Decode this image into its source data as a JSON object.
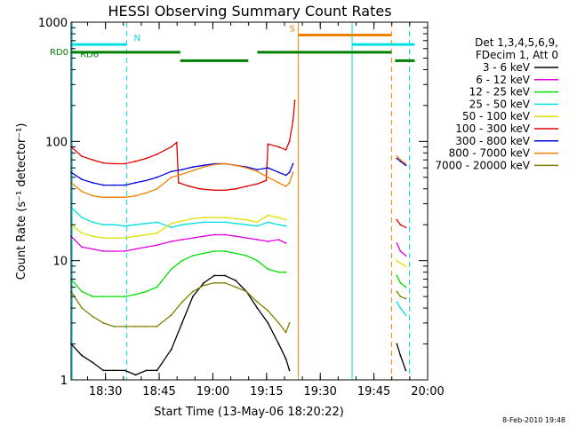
{
  "chart_data": {
    "type": "line",
    "title": "HESSI Observing Summary Count Rates",
    "xlabel": "Start Time (13-May-06 18:20:22)",
    "ylabel": "Count Rate (s⁻¹ detector⁻¹)",
    "footer": "8-Feb-2010 19:48",
    "y_scale": "log",
    "ylim": [
      1,
      1000
    ],
    "y_ticks": [
      {
        "value": 1,
        "label": "1"
      },
      {
        "value": 10,
        "label": "10"
      },
      {
        "value": 100,
        "label": "100"
      },
      {
        "value": 1000,
        "label": "1000"
      }
    ],
    "xlim_minutes": [
      0,
      99.6
    ],
    "x_ticks": [
      {
        "value": 9.6,
        "label": "18:30"
      },
      {
        "value": 24.6,
        "label": "18:45"
      },
      {
        "value": 39.6,
        "label": "19:00"
      },
      {
        "value": 54.6,
        "label": "19:15"
      },
      {
        "value": 69.6,
        "label": "19:30"
      },
      {
        "value": 84.6,
        "label": "19:45"
      },
      {
        "value": 99.6,
        "label": "20:00"
      }
    ],
    "legend": {
      "placement": "right",
      "header": [
        "Det 1,3,4,5,6,9,",
        "FDecim 1, Att 0"
      ]
    },
    "series": [
      {
        "name": "3 - 6 keV",
        "color": "#000000",
        "segments": [
          [
            [
              0,
              2
            ],
            [
              3,
              1.6
            ],
            [
              6,
              1.4
            ],
            [
              9,
              1.2
            ],
            [
              12,
              1.2
            ],
            [
              15,
              1.2
            ],
            [
              18,
              1.1
            ],
            [
              21,
              1.2
            ],
            [
              24,
              1.2
            ],
            [
              28,
              1.8
            ],
            [
              31,
              3
            ],
            [
              34,
              5
            ],
            [
              37,
              6.5
            ],
            [
              40,
              7.5
            ],
            [
              43,
              7.5
            ],
            [
              46,
              6.8
            ],
            [
              49,
              5.5
            ],
            [
              52,
              4
            ],
            [
              55,
              3
            ],
            [
              58,
              2
            ],
            [
              60,
              1.5
            ],
            [
              61,
              1.2
            ]
          ],
          [
            [
              91,
              2
            ],
            [
              92,
              1.6
            ],
            [
              93.5,
              1.2
            ]
          ]
        ]
      },
      {
        "name": "6 - 12 keV",
        "color": "#e000e0",
        "segments": [
          [
            [
              0,
              16
            ],
            [
              3,
              13
            ],
            [
              6,
              12.5
            ],
            [
              9,
              12
            ],
            [
              12,
              12
            ],
            [
              15,
              12
            ],
            [
              18,
              12.5
            ],
            [
              21,
              13
            ],
            [
              24,
              13.5
            ],
            [
              28,
              14.5
            ],
            [
              31,
              15
            ],
            [
              34,
              15.5
            ],
            [
              37,
              16
            ],
            [
              40,
              16.5
            ],
            [
              43,
              16.5
            ],
            [
              46,
              16
            ],
            [
              49,
              15.5
            ],
            [
              52,
              15
            ],
            [
              55,
              14.5
            ],
            [
              58,
              15
            ],
            [
              60,
              14
            ]
          ],
          [
            [
              91,
              14
            ],
            [
              92,
              12
            ],
            [
              93.5,
              11
            ]
          ]
        ]
      },
      {
        "name": "12 - 25 keV",
        "color": "#00e000",
        "segments": [
          [
            [
              0,
              7
            ],
            [
              3,
              5.5
            ],
            [
              6,
              5
            ],
            [
              9,
              5
            ],
            [
              12,
              5
            ],
            [
              15,
              5
            ],
            [
              18,
              5.2
            ],
            [
              21,
              5.5
            ],
            [
              24,
              6
            ],
            [
              28,
              8.5
            ],
            [
              31,
              10
            ],
            [
              34,
              11
            ],
            [
              37,
              11.5
            ],
            [
              40,
              12
            ],
            [
              43,
              12
            ],
            [
              46,
              11.5
            ],
            [
              49,
              11
            ],
            [
              52,
              10
            ],
            [
              55,
              8.5
            ],
            [
              58,
              8
            ],
            [
              60,
              8
            ]
          ],
          [
            [
              91,
              7.5
            ],
            [
              92,
              6.5
            ],
            [
              93.5,
              6
            ]
          ]
        ]
      },
      {
        "name": "25 - 50 keV",
        "color": "#00e0e0",
        "segments": [
          [
            [
              0,
              28
            ],
            [
              3,
              23
            ],
            [
              6,
              21
            ],
            [
              9,
              20
            ],
            [
              12,
              20
            ],
            [
              15,
              19.5
            ],
            [
              18,
              20
            ],
            [
              21,
              20.5
            ],
            [
              24,
              21
            ],
            [
              28,
              19
            ],
            [
              31,
              20
            ],
            [
              34,
              20.5
            ],
            [
              37,
              21
            ],
            [
              40,
              21
            ],
            [
              43,
              21
            ],
            [
              46,
              20.5
            ],
            [
              49,
              20
            ],
            [
              52,
              19.5
            ],
            [
              55,
              21
            ],
            [
              58,
              20
            ],
            [
              60,
              19.5
            ]
          ],
          [
            [
              91,
              4.5
            ],
            [
              92,
              4
            ],
            [
              93.5,
              3.5
            ]
          ]
        ]
      },
      {
        "name": "50 - 100 keV",
        "color": "#e0e000",
        "segments": [
          [
            [
              0,
              20
            ],
            [
              3,
              17
            ],
            [
              6,
              16
            ],
            [
              9,
              15.5
            ],
            [
              12,
              15.5
            ],
            [
              15,
              15.5
            ],
            [
              18,
              16
            ],
            [
              21,
              16.5
            ],
            [
              24,
              17
            ],
            [
              28,
              20.5
            ],
            [
              31,
              21.5
            ],
            [
              34,
              22.5
            ],
            [
              37,
              23
            ],
            [
              40,
              23
            ],
            [
              43,
              23
            ],
            [
              46,
              22.5
            ],
            [
              49,
              22
            ],
            [
              52,
              21
            ],
            [
              55,
              24
            ],
            [
              58,
              23
            ],
            [
              60,
              22
            ]
          ],
          [
            [
              91,
              10
            ],
            [
              92,
              9.5
            ],
            [
              93.5,
              9
            ]
          ]
        ]
      },
      {
        "name": "100 - 300 keV",
        "color": "#e00000",
        "segments": [
          [
            [
              0,
              90
            ],
            [
              3,
              75
            ],
            [
              6,
              70
            ],
            [
              9,
              66
            ],
            [
              12,
              65
            ],
            [
              15,
              65
            ],
            [
              18,
              68
            ],
            [
              21,
              72
            ],
            [
              24,
              78
            ],
            [
              28,
              90
            ],
            [
              29.5,
              98
            ],
            [
              30,
              45
            ],
            [
              33,
              42
            ],
            [
              36,
              40
            ],
            [
              40,
              39
            ],
            [
              43,
              39
            ],
            [
              46,
              40
            ],
            [
              49,
              42
            ],
            [
              52,
              44
            ],
            [
              54.5,
              47
            ],
            [
              55,
              95
            ],
            [
              58,
              90
            ],
            [
              60,
              85
            ],
            [
              61,
              100
            ],
            [
              62,
              150
            ],
            [
              62.5,
              220
            ]
          ],
          [
            [
              91,
              22
            ],
            [
              92,
              20
            ],
            [
              93.5,
              19
            ]
          ]
        ]
      },
      {
        "name": "300 - 800 keV",
        "color": "#0000e0",
        "segments": [
          [
            [
              0,
              55
            ],
            [
              3,
              48
            ],
            [
              6,
              45
            ],
            [
              9,
              43
            ],
            [
              12,
              43
            ],
            [
              15,
              43
            ],
            [
              18,
              45
            ],
            [
              21,
              47
            ],
            [
              24,
              50
            ],
            [
              28,
              56
            ],
            [
              31,
              58
            ],
            [
              34,
              61
            ],
            [
              37,
              63
            ],
            [
              40,
              65
            ],
            [
              43,
              65
            ],
            [
              46,
              63
            ],
            [
              49,
              61
            ],
            [
              52,
              58
            ],
            [
              55,
              60
            ],
            [
              58,
              55
            ],
            [
              60,
              52
            ],
            [
              61,
              55
            ],
            [
              62,
              65
            ]
          ],
          [
            [
              91,
              72
            ],
            [
              92,
              68
            ],
            [
              93.5,
              63
            ]
          ]
        ]
      },
      {
        "name": "800 - 7000 keV",
        "color": "#f08000",
        "segments": [
          [
            [
              0,
              45
            ],
            [
              3,
              38
            ],
            [
              6,
              35
            ],
            [
              9,
              34
            ],
            [
              12,
              34
            ],
            [
              15,
              34
            ],
            [
              18,
              35
            ],
            [
              21,
              37
            ],
            [
              24,
              40
            ],
            [
              28,
              50
            ],
            [
              31,
              53
            ],
            [
              34,
              57
            ],
            [
              37,
              61
            ],
            [
              40,
              64
            ],
            [
              43,
              65
            ],
            [
              46,
              63
            ],
            [
              49,
              60
            ],
            [
              52,
              56
            ],
            [
              55,
              50
            ],
            [
              58,
              45
            ],
            [
              60,
              42
            ],
            [
              61,
              45
            ],
            [
              62,
              55
            ]
          ],
          [
            [
              91,
              75
            ],
            [
              92,
              70
            ],
            [
              93.5,
              65
            ]
          ]
        ]
      },
      {
        "name": "7000 - 20000 keV",
        "color": "#808000",
        "segments": [
          [
            [
              0,
              5.5
            ],
            [
              3,
              4
            ],
            [
              6,
              3.4
            ],
            [
              9,
              3
            ],
            [
              12,
              2.8
            ],
            [
              15,
              2.8
            ],
            [
              18,
              2.8
            ],
            [
              21,
              2.8
            ],
            [
              24,
              2.8
            ],
            [
              28,
              3.5
            ],
            [
              31,
              4.5
            ],
            [
              34,
              5.5
            ],
            [
              37,
              6.2
            ],
            [
              40,
              6.5
            ],
            [
              43,
              6.5
            ],
            [
              46,
              6
            ],
            [
              49,
              5.5
            ],
            [
              52,
              4.5
            ],
            [
              55,
              3.8
            ],
            [
              58,
              3
            ],
            [
              60,
              2.5
            ],
            [
              61,
              3
            ]
          ],
          [
            [
              91,
              5.5
            ],
            [
              92,
              5
            ],
            [
              93.5,
              4.8
            ]
          ]
        ]
      }
    ],
    "vertical_lines": [
      {
        "x": 0.3,
        "color": "#00e0e0",
        "style": "solid"
      },
      {
        "x": 15.5,
        "color": "#00e0e0",
        "style": "dashed"
      },
      {
        "x": 63.5,
        "color": "#f08000",
        "style": "solid"
      },
      {
        "x": 78.5,
        "color": "#00e0e0",
        "style": "solid"
      },
      {
        "x": 89.5,
        "color": "#f08000",
        "style": "dashed"
      },
      {
        "x": 94.5,
        "color": "#00e0e0",
        "style": "dashed"
      }
    ],
    "flag_bars": [
      {
        "label": "N",
        "color": "#00e0e0",
        "y": 650,
        "segments": [
          [
            0,
            15.5
          ],
          [
            78.5,
            96
          ]
        ],
        "label_at": 17.5
      },
      {
        "label": "S",
        "color": "#f08000",
        "y": 780,
        "segments": [
          [
            63.5,
            89.5
          ]
        ],
        "label_at": 61
      },
      {
        "label": "RD0",
        "color": "#008000",
        "y": 560,
        "segments": [
          [
            0,
            30.5
          ],
          [
            52,
            89.5
          ]
        ],
        "label_left": true
      },
      {
        "label": "RD6",
        "color": "#008000",
        "y": 475,
        "segments": [
          [
            30.5,
            49.5
          ],
          [
            90.5,
            96
          ]
        ],
        "label_at": 2.5
      }
    ]
  }
}
